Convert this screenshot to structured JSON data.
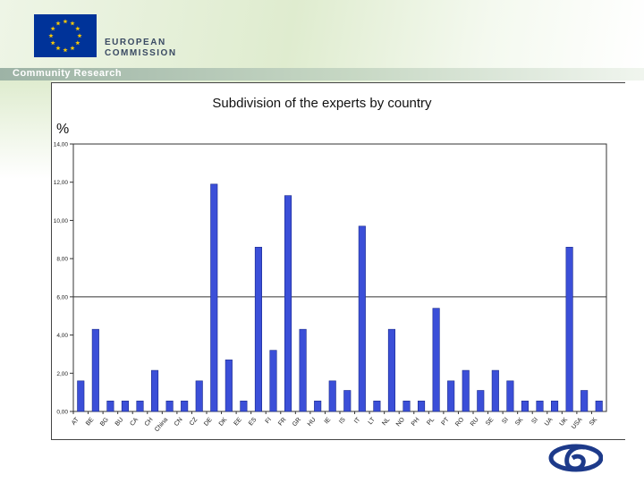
{
  "header": {
    "line1": "EUROPEAN",
    "line2": "COMMISSION",
    "subtitle": "Community Research",
    "flag_color": "#003399",
    "star_color": "#ffcc00"
  },
  "chart_data": {
    "type": "bar",
    "title": "Subdivision of the experts by country",
    "ylabel": "%",
    "xlabel": "",
    "ylim": [
      0,
      14
    ],
    "yticks": [
      "0,00",
      "2,00",
      "4,00",
      "6,00",
      "8,00",
      "10,00",
      "12,00",
      "14,00"
    ],
    "bar_color": "#3b4fd8",
    "grid": "single line at 6,00",
    "categories": [
      "AT",
      "BE",
      "BG",
      "BU",
      "CA",
      "CH",
      "China",
      "CN",
      "CZ",
      "DE",
      "DK",
      "EE",
      "ES",
      "FI",
      "FR",
      "GR",
      "HU",
      "IE",
      "IS",
      "IT",
      "LT",
      "NL",
      "NO",
      "PH",
      "PL",
      "PT",
      "RO",
      "RU",
      "SE",
      "SI",
      "SK",
      "SI",
      "UA",
      "UK",
      "USA",
      "SK"
    ],
    "values": [
      1.6,
      4.3,
      0.55,
      0.55,
      0.55,
      2.15,
      0.55,
      0.55,
      1.6,
      11.9,
      2.7,
      0.55,
      8.6,
      3.2,
      11.3,
      4.3,
      0.55,
      1.6,
      1.1,
      9.7,
      0.55,
      4.3,
      0.55,
      0.55,
      5.4,
      1.6,
      2.15,
      1.1,
      2.15,
      1.6,
      0.55,
      0.55,
      0.55,
      8.6,
      1.1,
      0.55
    ]
  }
}
